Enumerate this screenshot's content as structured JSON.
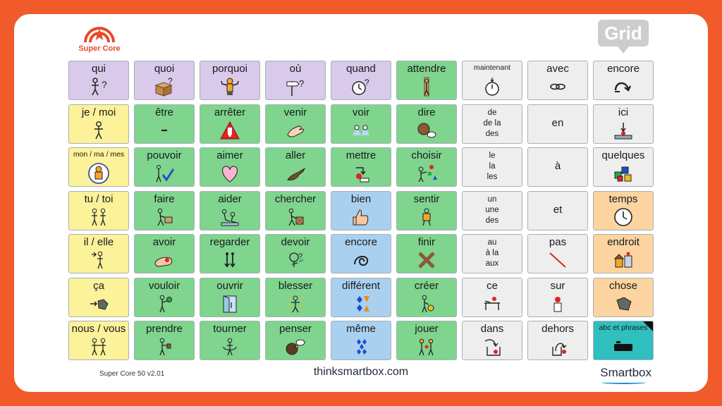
{
  "logo": {
    "text": "Super Core",
    "color": "#e8492a"
  },
  "badge": {
    "text": "Grid"
  },
  "colors": {
    "frame": "#f15a2b",
    "question": "#d9c9ea",
    "pronoun": "#fbf29a",
    "verb": "#7fd48e",
    "adjective": "#a9d0ef",
    "small_word": "#eeeeee",
    "noun": "#fcd4a0",
    "keyboard": "#2fbfbf"
  },
  "rows": [
    [
      {
        "label": "qui",
        "color": "purple",
        "icon": "person-question-icon"
      },
      {
        "label": "quoi",
        "color": "purple",
        "icon": "box-question-icon"
      },
      {
        "label": "porquoi",
        "color": "purple",
        "icon": "shrug-person-icon"
      },
      {
        "label": "où",
        "color": "purple",
        "icon": "signpost-question-icon"
      },
      {
        "label": "quand",
        "color": "purple",
        "icon": "clock-question-icon"
      },
      {
        "label": "attendre",
        "color": "green",
        "icon": "waiting-person-icon"
      },
      {
        "label": "maintenant",
        "color": "white",
        "icon": "stopwatch-icon",
        "size": "small"
      },
      {
        "label": "avec",
        "color": "white",
        "icon": "chain-link-icon"
      },
      {
        "label": "encore",
        "color": "white",
        "icon": "repeat-arrow-icon"
      }
    ],
    [
      {
        "label": "je / moi",
        "color": "yellow",
        "icon": "self-person-icon"
      },
      {
        "label": "être",
        "color": "green",
        "icon": "dash-icon"
      },
      {
        "label": "arrêter",
        "color": "green",
        "icon": "stop-sign-icon"
      },
      {
        "label": "venir",
        "color": "green",
        "icon": "beckoning-hand-icon"
      },
      {
        "label": "voir",
        "color": "green",
        "icon": "eyes-icon"
      },
      {
        "label": "dire",
        "color": "green",
        "icon": "speaking-head-icon"
      },
      {
        "label": "de\nde la\ndes",
        "color": "white",
        "icon": "",
        "size": "multi"
      },
      {
        "label": "en",
        "color": "white",
        "icon": "",
        "size": "centered"
      },
      {
        "label": "ici",
        "color": "white",
        "icon": "here-marker-icon"
      }
    ],
    [
      {
        "label": "mon / ma / mes",
        "color": "yellow",
        "icon": "my-person-icon",
        "size": "small"
      },
      {
        "label": "pouvoir",
        "color": "green",
        "icon": "can-tick-icon"
      },
      {
        "label": "aimer",
        "color": "green",
        "icon": "heart-icon"
      },
      {
        "label": "aller",
        "color": "green",
        "icon": "pointing-hand-icon"
      },
      {
        "label": "mettre",
        "color": "green",
        "icon": "put-arrow-icon"
      },
      {
        "label": "choisir",
        "color": "green",
        "icon": "choose-shapes-icon"
      },
      {
        "label": "le\nla\nles",
        "color": "white",
        "icon": "",
        "size": "multi"
      },
      {
        "label": "à",
        "color": "white",
        "icon": "",
        "size": "centered"
      },
      {
        "label": "quelques",
        "color": "white",
        "icon": "cubes-icon"
      }
    ],
    [
      {
        "label": "tu / toi",
        "color": "yellow",
        "icon": "you-people-icon"
      },
      {
        "label": "faire",
        "color": "green",
        "icon": "making-person-icon"
      },
      {
        "label": "aider",
        "color": "green",
        "icon": "helping-people-icon"
      },
      {
        "label": "chercher",
        "color": "green",
        "icon": "searching-person-icon"
      },
      {
        "label": "bien",
        "color": "blue",
        "icon": "thumbs-up-icon"
      },
      {
        "label": "sentir",
        "color": "green",
        "icon": "feeling-person-icon"
      },
      {
        "label": "un\nune\ndes",
        "color": "white",
        "icon": "",
        "size": "multi"
      },
      {
        "label": "et",
        "color": "white",
        "icon": "",
        "size": "centered"
      },
      {
        "label": "temps",
        "color": "orange",
        "icon": "clock-icon"
      }
    ],
    [
      {
        "label": "il / elle",
        "color": "yellow",
        "icon": "he-she-icon"
      },
      {
        "label": "avoir",
        "color": "green",
        "icon": "holding-hand-icon"
      },
      {
        "label": "regarder",
        "color": "green",
        "icon": "look-arrows-icon"
      },
      {
        "label": "devoir",
        "color": "green",
        "icon": "must-person-icon"
      },
      {
        "label": "encore",
        "color": "blue",
        "icon": "spiral-icon"
      },
      {
        "label": "finir",
        "color": "green",
        "icon": "finish-cross-icon"
      },
      {
        "label": "au\nà la\naux",
        "color": "white",
        "icon": "",
        "size": "multi"
      },
      {
        "label": "pas",
        "color": "white",
        "icon": "red-slash-icon"
      },
      {
        "label": "endroit",
        "color": "orange",
        "icon": "place-icon"
      }
    ],
    [
      {
        "label": "ça",
        "color": "yellow",
        "icon": "that-arrow-icon"
      },
      {
        "label": "vouloir",
        "color": "green",
        "icon": "wanting-person-icon"
      },
      {
        "label": "ouvrir",
        "color": "green",
        "icon": "open-door-icon"
      },
      {
        "label": "blesser",
        "color": "green",
        "icon": "hurt-person-icon"
      },
      {
        "label": "différent",
        "color": "blue",
        "icon": "different-shapes-icon"
      },
      {
        "label": "créer",
        "color": "green",
        "icon": "create-person-icon"
      },
      {
        "label": "ce",
        "color": "white",
        "icon": "this-table-icon"
      },
      {
        "label": "sur",
        "color": "white",
        "icon": "on-top-icon"
      },
      {
        "label": "chose",
        "color": "orange",
        "icon": "thing-blob-icon"
      }
    ],
    [
      {
        "label": "nous / vous",
        "color": "yellow",
        "icon": "we-people-icon"
      },
      {
        "label": "prendre",
        "color": "green",
        "icon": "taking-person-icon"
      },
      {
        "label": "tourner",
        "color": "green",
        "icon": "turning-person-icon"
      },
      {
        "label": "penser",
        "color": "green",
        "icon": "thinking-head-icon"
      },
      {
        "label": "même",
        "color": "blue",
        "icon": "same-shapes-icon"
      },
      {
        "label": "jouer",
        "color": "green",
        "icon": "playing-children-icon"
      },
      {
        "label": "dans",
        "color": "white",
        "icon": "in-box-icon"
      },
      {
        "label": "dehors",
        "color": "white",
        "icon": "out-box-icon"
      },
      {
        "label": "abc et phrases",
        "color": "teal",
        "icon": "keyboard-icon",
        "size": "small",
        "corner": true
      }
    ]
  ],
  "footer": {
    "version": "Super Core 50 v2.01",
    "website": "thinksmartbox.com",
    "brand": "Smartbox"
  }
}
